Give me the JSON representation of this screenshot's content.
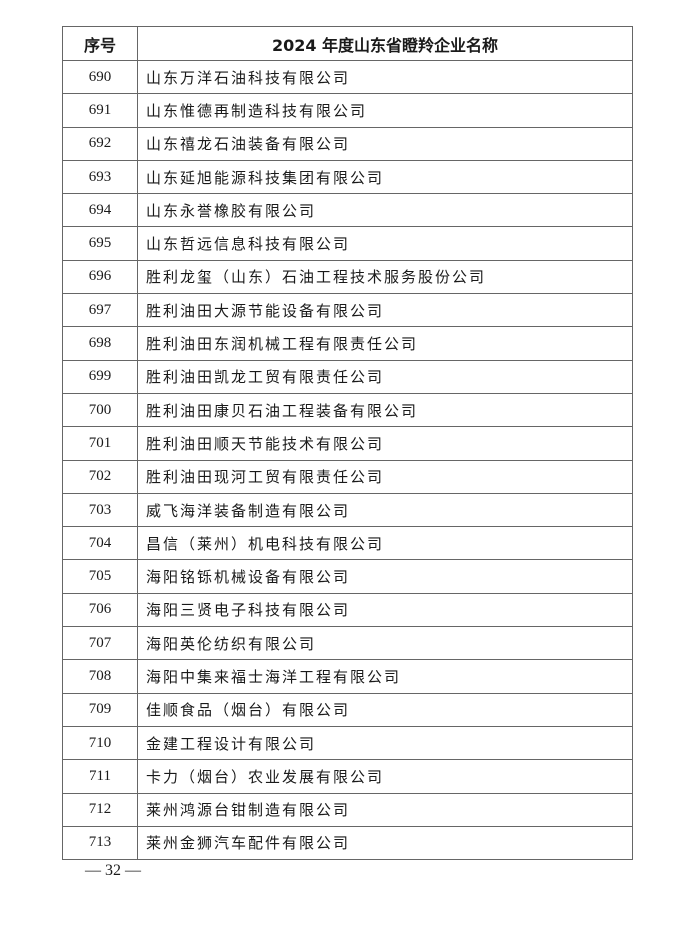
{
  "table": {
    "headers": [
      "序号",
      "2024 年度山东省瞪羚企业名称"
    ],
    "rows": [
      [
        "690",
        "山东万洋石油科技有限公司"
      ],
      [
        "691",
        "山东惟德再制造科技有限公司"
      ],
      [
        "692",
        "山东禧龙石油装备有限公司"
      ],
      [
        "693",
        "山东延旭能源科技集团有限公司"
      ],
      [
        "694",
        "山东永誉橡胶有限公司"
      ],
      [
        "695",
        "山东哲远信息科技有限公司"
      ],
      [
        "696",
        "胜利龙玺（山东）石油工程技术服务股份公司"
      ],
      [
        "697",
        "胜利油田大源节能设备有限公司"
      ],
      [
        "698",
        "胜利油田东润机械工程有限责任公司"
      ],
      [
        "699",
        "胜利油田凯龙工贸有限责任公司"
      ],
      [
        "700",
        "胜利油田康贝石油工程装备有限公司"
      ],
      [
        "701",
        "胜利油田顺天节能技术有限公司"
      ],
      [
        "702",
        "胜利油田现河工贸有限责任公司"
      ],
      [
        "703",
        "威飞海洋装备制造有限公司"
      ],
      [
        "704",
        "昌信（莱州）机电科技有限公司"
      ],
      [
        "705",
        "海阳铭铄机械设备有限公司"
      ],
      [
        "706",
        "海阳三贤电子科技有限公司"
      ],
      [
        "707",
        "海阳英伦纺织有限公司"
      ],
      [
        "708",
        "海阳中集来福士海洋工程有限公司"
      ],
      [
        "709",
        "佳顺食品（烟台）有限公司"
      ],
      [
        "710",
        "金建工程设计有限公司"
      ],
      [
        "711",
        "卡力（烟台）农业发展有限公司"
      ],
      [
        "712",
        "莱州鸿源台钳制造有限公司"
      ],
      [
        "713",
        "莱州金狮汽车配件有限公司"
      ]
    ]
  },
  "footer": {
    "page_number": "— 32 —"
  }
}
